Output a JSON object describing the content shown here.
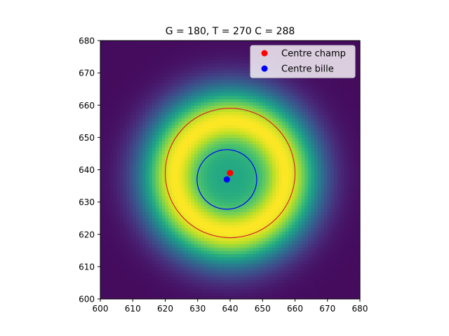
{
  "chart_data": {
    "type": "heatmap",
    "title": "G = 180, T = 270 C = 288",
    "xlabel": "",
    "ylabel": "",
    "xlim": [
      600,
      680
    ],
    "ylim": [
      600,
      680
    ],
    "xticks": [
      600,
      610,
      620,
      630,
      640,
      650,
      660,
      670,
      680
    ],
    "yticks": [
      600,
      610,
      620,
      630,
      640,
      650,
      660,
      670,
      680
    ],
    "grid": false,
    "colormap": "viridis",
    "heatmap_field": {
      "center": [
        640,
        638
      ],
      "ring_radius": 17,
      "ring_width": 6.5,
      "inner_level": 0.6,
      "outer_decay": 11,
      "background_level": 0.03
    },
    "circles": [
      {
        "name": "champ",
        "center": [
          640,
          639
        ],
        "radius": 20,
        "color": "#d62728"
      },
      {
        "name": "bille",
        "center": [
          639,
          637
        ],
        "radius": 9.2,
        "color": "#0000ff"
      }
    ],
    "series": [
      {
        "name": "Centre champ",
        "type": "scatter",
        "x": [
          640
        ],
        "y": [
          639
        ],
        "color": "#ff0000"
      },
      {
        "name": "Centre bille",
        "type": "scatter",
        "x": [
          639
        ],
        "y": [
          637
        ],
        "color": "#0000ff"
      }
    ],
    "legend": {
      "position": "top-right",
      "entries": [
        "Centre champ",
        "Centre bille"
      ]
    }
  }
}
